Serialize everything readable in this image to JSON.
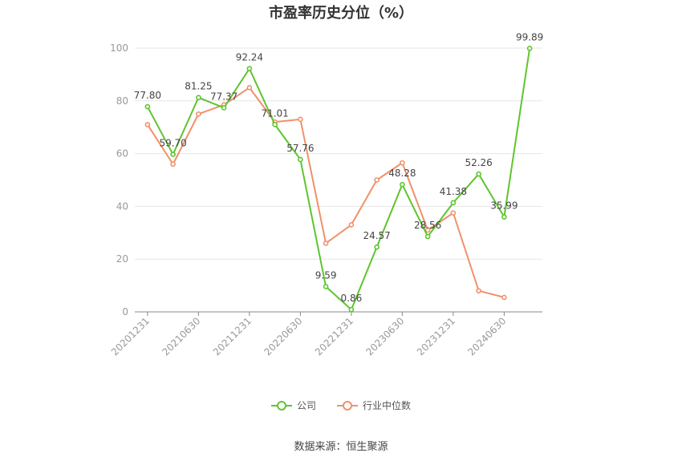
{
  "colors": {
    "company": "#5ec52e",
    "industry": "#f0916a",
    "grid": "#e6e6e6",
    "axis": "#999999",
    "label": "#444444"
  },
  "legend": {
    "company": "公司",
    "industry": "行业中位数"
  },
  "source": "数据来源：恒生聚源",
  "chart_data": {
    "type": "line",
    "title": "市盈率历史分位（%）",
    "xlabel": "",
    "ylabel": "",
    "ylim": [
      0,
      100
    ],
    "yticks": [
      0,
      20,
      40,
      60,
      80,
      100
    ],
    "grid": true,
    "legend_position": "bottom",
    "x": [
      "20201231",
      "20210331",
      "20210630",
      "20210930",
      "20211231",
      "20220331",
      "20220630",
      "20220930",
      "20221231",
      "20230331",
      "20230630",
      "20230930",
      "20231231",
      "20240331",
      "20240630",
      "20240930"
    ],
    "x_tick_labels": [
      "20201231",
      "",
      "20210630",
      "",
      "20211231",
      "",
      "20220630",
      "",
      "20221231",
      "",
      "20230630",
      "",
      "20231231",
      "",
      "20240630",
      ""
    ],
    "series": [
      {
        "name": "公司",
        "values": [
          77.8,
          59.7,
          81.25,
          77.37,
          92.24,
          71.01,
          57.76,
          9.59,
          0.86,
          24.57,
          48.28,
          28.56,
          41.38,
          52.26,
          35.99,
          99.89
        ],
        "labels": [
          "77.80",
          "59.70",
          "81.25",
          "77.37",
          "92.24",
          "71.01",
          "57.76",
          "9.59",
          "0.86",
          "24.57",
          "48.28",
          "28.56",
          "41.38",
          "52.26",
          "35.99",
          "99.89"
        ]
      },
      {
        "name": "行业中位数",
        "values": [
          71,
          56,
          75,
          78.5,
          85,
          72,
          73,
          26,
          33,
          50,
          56.5,
          31,
          37.5,
          8,
          5.5,
          null
        ]
      }
    ]
  }
}
